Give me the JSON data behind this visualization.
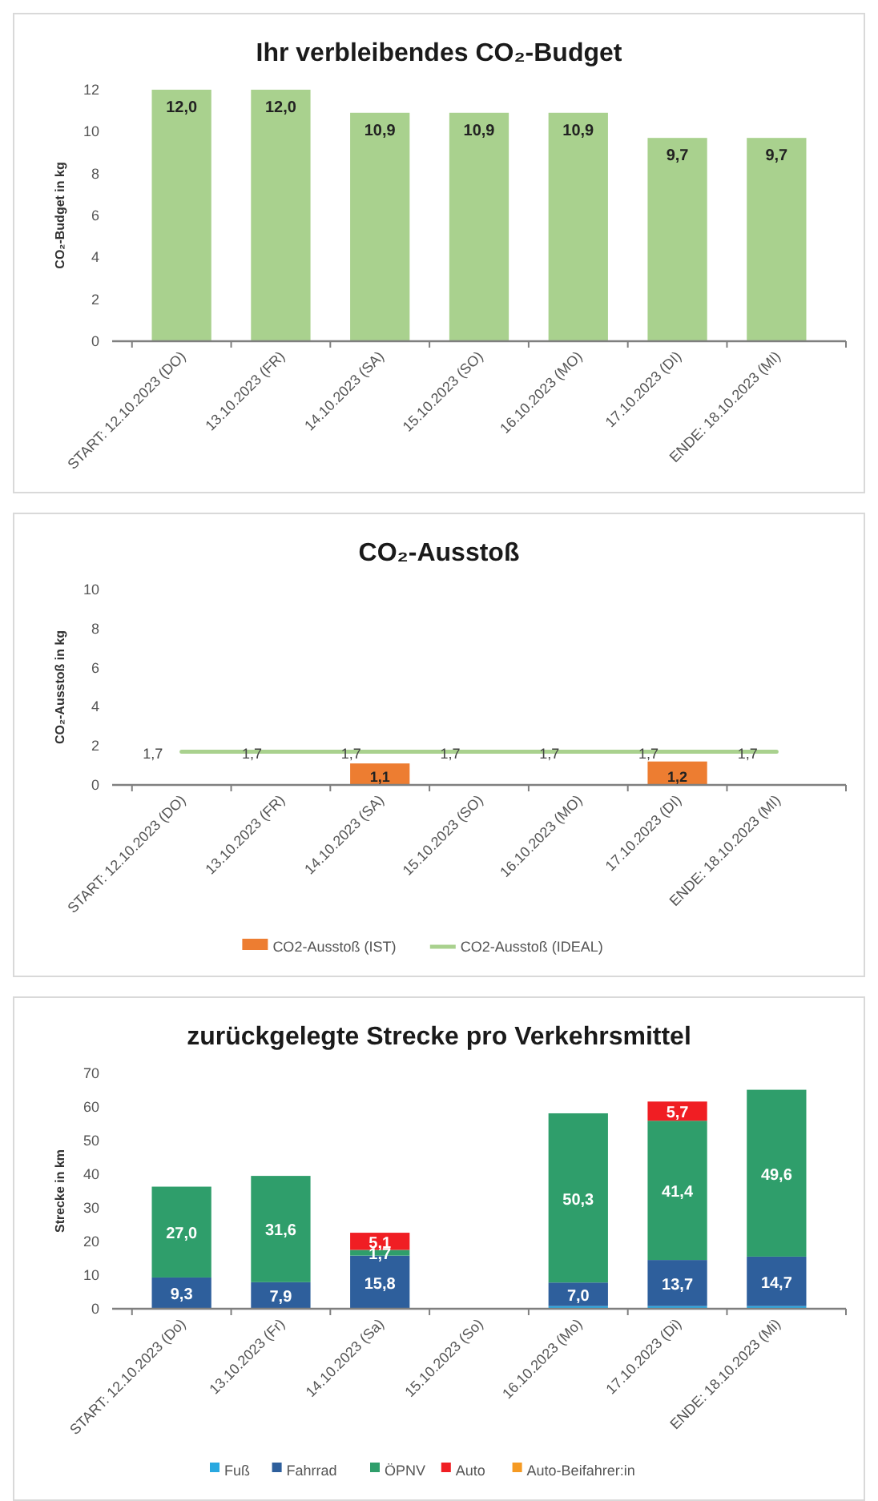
{
  "chart_data": [
    {
      "type": "bar",
      "title": "Ihr verbleibendes CO₂-Budget",
      "ylabel": "CO₂-Budget in kg",
      "categories": [
        "START: 12.10.2023 (DO)",
        "13.10.2023 (FR)",
        "14.10.2023 (SA)",
        "15.10.2023 (SO)",
        "16.10.2023 (MO)",
        "17.10.2023 (DI)",
        "ENDE: 18.10.2023 (MI)"
      ],
      "values": [
        12.0,
        12.0,
        10.9,
        10.9,
        10.9,
        9.7,
        9.7
      ],
      "value_labels": [
        "12,0",
        "12,0",
        "10,9",
        "10,9",
        "10,9",
        "9,7",
        "9,7"
      ],
      "color": "#a9d18e",
      "ylim": [
        0,
        12
      ],
      "yticks": [
        0,
        2,
        4,
        6,
        8,
        10,
        12
      ]
    },
    {
      "type": "bar",
      "title": "CO₂-Ausstoß",
      "ylabel": "CO₂-Ausstoß in kg",
      "categories": [
        "START: 12.10.2023 (DO)",
        "13.10.2023 (FR)",
        "14.10.2023 (SA)",
        "15.10.2023 (SO)",
        "16.10.2023 (MO)",
        "17.10.2023 (DI)",
        "ENDE: 18.10.2023 (MI)"
      ],
      "series": [
        {
          "name": "CO2-Ausstoß (IST)",
          "color": "#ed7d31",
          "values": [
            null,
            null,
            1.1,
            null,
            null,
            1.2,
            null
          ],
          "value_labels": [
            null,
            null,
            "1,1",
            null,
            null,
            "1,2",
            null
          ]
        },
        {
          "name": "CO2-Ausstoß (IDEAL)",
          "type": "line",
          "color": "#a9d18e",
          "values": [
            1.7,
            1.7,
            1.7,
            1.7,
            1.7,
            1.7,
            1.7
          ],
          "value_labels": [
            "1,7",
            "1,7",
            "1,7",
            "1,7",
            "1,7",
            "1,7",
            "1,7"
          ]
        }
      ],
      "ylim": [
        0,
        10
      ],
      "yticks": [
        0,
        2,
        4,
        6,
        8,
        10
      ],
      "legend": "bottom",
      "marker": "none"
    },
    {
      "type": "bar",
      "title": "zurückgelegte Strecke pro Verkehrsmittel",
      "ylabel": "Strecke in km",
      "categories": [
        "START: 12.10.2023 (Do)",
        "13.10.2023 (Fr)",
        "14.10.2023 (Sa)",
        "15.10.2023 (So)",
        "16.10.2023 (Mo)",
        "17.10.2023 (Di)",
        "ENDE: 18.10.2023 (Mi)"
      ],
      "stacked": true,
      "series": [
        {
          "name": "Fuß",
          "color": "#29a8e0",
          "values": [
            null,
            null,
            null,
            null,
            0.8,
            0.8,
            0.8
          ]
        },
        {
          "name": "Fahrrad",
          "color": "#2e5f9c",
          "values": [
            9.3,
            7.9,
            15.8,
            null,
            7.0,
            13.7,
            14.7
          ],
          "value_labels": [
            "9,3",
            "7,9",
            "15,8",
            null,
            "7,0",
            "13,7",
            "14,7"
          ]
        },
        {
          "name": "ÖPNV",
          "color": "#2f9e6b",
          "values": [
            27.0,
            31.6,
            1.7,
            null,
            50.3,
            41.4,
            49.6
          ],
          "value_labels": [
            "27,0",
            "31,6",
            "1,7",
            null,
            "50,3",
            "41,4",
            "49,6"
          ]
        },
        {
          "name": "Auto",
          "color": "#f01e23",
          "values": [
            null,
            null,
            5.1,
            null,
            null,
            5.7,
            null
          ],
          "value_labels": [
            null,
            null,
            "5,1",
            null,
            null,
            "5,7",
            null
          ]
        },
        {
          "name": "Auto-Beifahrer:in",
          "color": "#f59a23",
          "values": [
            null,
            null,
            null,
            null,
            null,
            null,
            null
          ]
        }
      ],
      "ylim": [
        0,
        70
      ],
      "yticks": [
        0,
        10,
        20,
        30,
        40,
        50,
        60,
        70
      ],
      "legend": "bottom"
    }
  ]
}
